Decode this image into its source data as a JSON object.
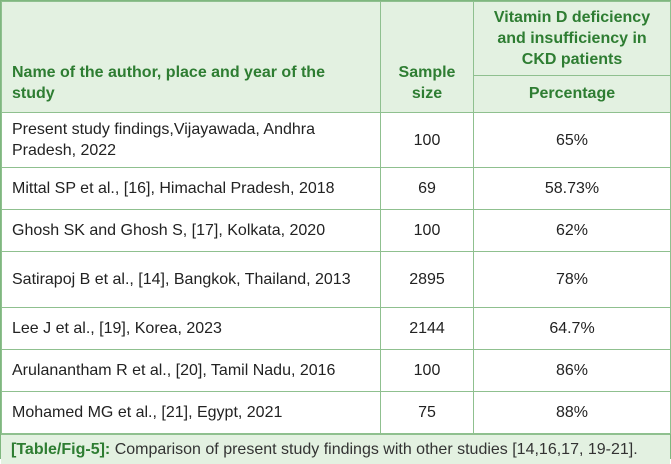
{
  "table": {
    "headers": {
      "author": "Name of the author, place and year of the study",
      "sample": "Sample size",
      "vitamin_group": "Vitamin D deficiency and insufficiency in CKD patients",
      "percentage": "Percentage"
    },
    "rows": [
      {
        "author": "Present study findings,Vijayawada, Andhra Pradesh, 2022",
        "sample": "100",
        "percentage": "65%"
      },
      {
        "author": "Mittal SP et al., [16], Himachal Pradesh, 2018",
        "sample": "69",
        "percentage": "58.73%"
      },
      {
        "author": "Ghosh SK and Ghosh S, [17], Kolkata, 2020",
        "sample": "100",
        "percentage": "62%"
      },
      {
        "author": "Satirapoj B et al., [14], Bangkok, Thailand, 2013",
        "sample": "2895",
        "percentage": "78%"
      },
      {
        "author": "Lee J et al., [19], Korea, 2023",
        "sample": "2144",
        "percentage": "64.7%"
      },
      {
        "author": "Arulanantham R et al., [20], Tamil Nadu, 2016",
        "sample": "100",
        "percentage": "86%"
      },
      {
        "author": "Mohamed MG et al., [21], Egypt, 2021",
        "sample": "75",
        "percentage": "88%"
      }
    ]
  },
  "caption": {
    "label": "[Table/Fig-5]:",
    "text": " Comparison of present study findings with other studies [14,16,17, 19-21]."
  },
  "colors": {
    "accent": "#2e7d32",
    "header_bg": "#e3f1e1",
    "border": "#8fc08f"
  }
}
